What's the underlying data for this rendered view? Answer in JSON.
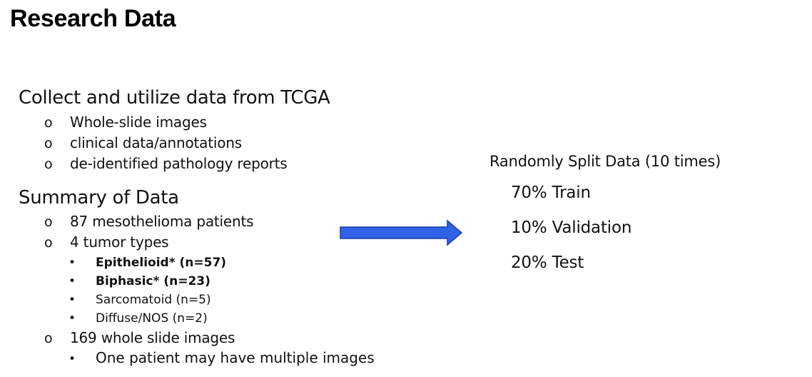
{
  "title": "Research Data",
  "collect": {
    "heading": "Collect and utilize data from TCGA",
    "bullet_symbol": "o",
    "items": [
      "Whole-slide images",
      "clinical data/annotations",
      "de-identified pathology reports"
    ]
  },
  "summary": {
    "heading": "Summary of Data",
    "bullet_symbol": "o",
    "dot_symbol": "•",
    "patients": "87 mesothelioma patients",
    "tumor_types": {
      "label": "4 tumor types",
      "items": [
        "Epithelioid* (n=57)",
        "Biphasic* (n=23)",
        "Sarcomatoid (n=5)",
        "Diffuse/NOS (n=2)"
      ]
    },
    "slides": {
      "label": "169 whole slide images",
      "note": "One patient may have multiple images"
    }
  },
  "split": {
    "title": "Randomly Split Data (10 times)",
    "train": "70% Train",
    "validation": "10% Validation",
    "test": "20% Test"
  },
  "colors": {
    "arrow_fill": "#2f62e8",
    "arrow_stroke": "#1a3fa8"
  }
}
